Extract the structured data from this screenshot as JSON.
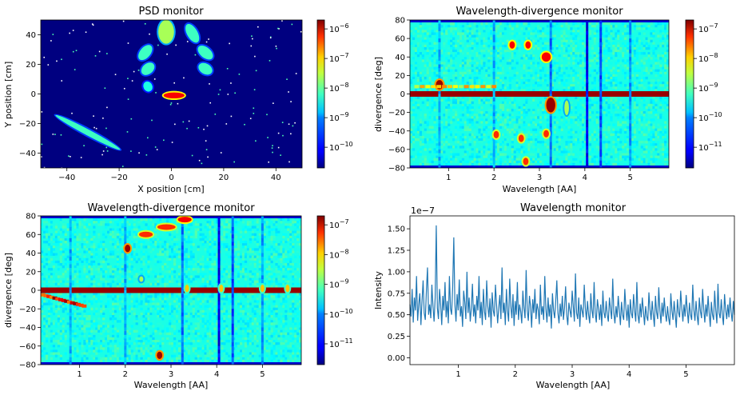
{
  "chart_data": [
    {
      "type": "heatmap",
      "title": "PSD monitor",
      "xlabel": "X position [cm]",
      "ylabel": "Y position [cm]",
      "xlim": [
        -50,
        50
      ],
      "ylim": [
        -50,
        50
      ],
      "xticks": [
        -40,
        -20,
        0,
        20,
        40
      ],
      "yticks": [
        -40,
        -20,
        0,
        20,
        40
      ],
      "colorbar": {
        "scale": "log",
        "range": [
          2e-11,
          2e-06
        ],
        "ticks": [
          "10^-10",
          "10^-9",
          "10^-8",
          "10^-7",
          "10^-6"
        ],
        "tick_values": [
          1e-10,
          1e-09,
          1e-08,
          1e-07,
          1e-06
        ]
      },
      "colormap": "jet",
      "background_level": 2e-11,
      "features": [
        {
          "kind": "blob",
          "x": -2,
          "y": 42,
          "w": 3,
          "h": 8,
          "angle": 0,
          "level": 1e-08
        },
        {
          "kind": "blob",
          "x": 8,
          "y": 41,
          "w": 2,
          "h": 7,
          "angle": 30,
          "level": 3e-09
        },
        {
          "kind": "blob",
          "x": -10,
          "y": 28,
          "w": 2,
          "h": 6,
          "angle": -40,
          "level": 3e-09
        },
        {
          "kind": "blob",
          "x": 13,
          "y": 28,
          "w": 2,
          "h": 6,
          "angle": 50,
          "level": 3e-09
        },
        {
          "kind": "blob",
          "x": -9,
          "y": 17,
          "w": 2,
          "h": 5,
          "angle": -50,
          "level": 3e-09
        },
        {
          "kind": "blob",
          "x": 13,
          "y": 17,
          "w": 2,
          "h": 5,
          "angle": 60,
          "level": 3e-09
        },
        {
          "kind": "blob",
          "x": -9,
          "y": 5,
          "w": 2,
          "h": 3,
          "angle": -60,
          "level": 2e-09
        },
        {
          "kind": "blob",
          "x": 1,
          "y": -1,
          "w": 4,
          "h": 2,
          "angle": 0,
          "level": 5e-07
        },
        {
          "kind": "blob",
          "x": -32,
          "y": -26,
          "w": 14,
          "h": 2,
          "angle": -28,
          "level": 3e-09
        }
      ]
    },
    {
      "type": "heatmap",
      "title": "Wavelength-divergence monitor",
      "xlabel": "Wavelength [AA]",
      "ylabel": "divergence [deg]",
      "xlim": [
        0.15,
        5.85
      ],
      "ylim": [
        -80,
        80
      ],
      "xticks": [
        1,
        2,
        3,
        4,
        5
      ],
      "yticks": [
        -80,
        -60,
        -40,
        -20,
        0,
        20,
        40,
        60,
        80
      ],
      "colorbar": {
        "scale": "log",
        "range": [
          2e-12,
          2e-07
        ],
        "ticks": [
          "10^-11",
          "10^-10",
          "10^-9",
          "10^-8",
          "10^-7"
        ],
        "tick_values": [
          1e-11,
          1e-10,
          1e-09,
          1e-08,
          1e-07
        ]
      },
      "colormap": "jet",
      "background_level": 2e-10,
      "features": [
        {
          "kind": "hband",
          "y": 0,
          "h": 3,
          "level": 1.5e-07
        },
        {
          "kind": "vline",
          "x": 0.8,
          "level": 6e-11
        },
        {
          "kind": "vline",
          "x": 2.0,
          "level": 6e-11
        },
        {
          "kind": "vline",
          "x": 3.25,
          "level": 3e-11
        },
        {
          "kind": "vline",
          "x": 4.05,
          "level": 8e-12
        },
        {
          "kind": "vline",
          "x": 4.35,
          "level": 2e-11
        },
        {
          "kind": "vline",
          "x": 5.0,
          "level": 5e-11
        },
        {
          "kind": "blob",
          "x": 2.4,
          "y": 53,
          "w": 0.06,
          "h": 4,
          "angle": 0,
          "level": 5e-08
        },
        {
          "kind": "blob",
          "x": 2.75,
          "y": 53,
          "w": 0.06,
          "h": 4,
          "angle": 0,
          "level": 5e-08
        },
        {
          "kind": "blob",
          "x": 3.15,
          "y": 40,
          "w": 0.1,
          "h": 5,
          "angle": 0,
          "level": 5e-08
        },
        {
          "kind": "blob",
          "x": 3.25,
          "y": -12,
          "w": 0.1,
          "h": 8,
          "angle": 0,
          "level": 1.5e-07
        },
        {
          "kind": "blob",
          "x": 2.05,
          "y": -44,
          "w": 0.06,
          "h": 4,
          "angle": 0,
          "level": 3e-08
        },
        {
          "kind": "blob",
          "x": 2.6,
          "y": -48,
          "w": 0.06,
          "h": 4,
          "angle": 0,
          "level": 3e-08
        },
        {
          "kind": "blob",
          "x": 3.15,
          "y": -43,
          "w": 0.06,
          "h": 4,
          "angle": 0,
          "level": 3e-08
        },
        {
          "kind": "blob",
          "x": 2.7,
          "y": -73,
          "w": 0.06,
          "h": 4,
          "angle": 0,
          "level": 3e-08
        },
        {
          "kind": "blob",
          "x": 0.8,
          "y": 10,
          "w": 0.08,
          "h": 5,
          "angle": 0,
          "level": 1.5e-07
        },
        {
          "kind": "streak",
          "x0": 0.3,
          "y0": 8,
          "x1": 2.0,
          "y1": 8,
          "level": 3e-09
        },
        {
          "kind": "blob",
          "x": 3.6,
          "y": -15,
          "w": 0.05,
          "h": 8,
          "angle": 0,
          "level": 1e-09
        }
      ]
    },
    {
      "type": "heatmap",
      "title": "Wavelength-divergence monitor",
      "xlabel": "Wavelength [AA]",
      "ylabel": "divergence [deg]",
      "xlim": [
        0.15,
        5.85
      ],
      "ylim": [
        -80,
        80
      ],
      "xticks": [
        1,
        2,
        3,
        4,
        5
      ],
      "yticks": [
        -80,
        -60,
        -40,
        -20,
        0,
        20,
        40,
        60,
        80
      ],
      "colorbar": {
        "scale": "log",
        "range": [
          2e-12,
          2e-07
        ],
        "ticks": [
          "10^-11",
          "10^-10",
          "10^-9",
          "10^-8",
          "10^-7"
        ],
        "tick_values": [
          1e-11,
          1e-10,
          1e-09,
          1e-08,
          1e-07
        ]
      },
      "colormap": "jet",
      "background_level": 2e-10,
      "features": [
        {
          "kind": "hband",
          "y": 0,
          "h": 3,
          "level": 1.5e-07
        },
        {
          "kind": "vline",
          "x": 0.8,
          "level": 6e-11
        },
        {
          "kind": "vline",
          "x": 2.0,
          "level": 6e-11
        },
        {
          "kind": "vline",
          "x": 3.25,
          "level": 3e-11
        },
        {
          "kind": "vline",
          "x": 4.05,
          "level": 8e-12
        },
        {
          "kind": "vline",
          "x": 4.35,
          "level": 2e-11
        },
        {
          "kind": "vline",
          "x": 5.0,
          "level": 5e-11
        },
        {
          "kind": "blob",
          "x": 2.05,
          "y": 45,
          "w": 0.06,
          "h": 4,
          "angle": 0,
          "level": 1.5e-07
        },
        {
          "kind": "blob",
          "x": 2.45,
          "y": 60,
          "w": 0.15,
          "h": 3,
          "angle": 0,
          "level": 3e-08
        },
        {
          "kind": "blob",
          "x": 2.9,
          "y": 68,
          "w": 0.2,
          "h": 3,
          "angle": 0,
          "level": 3e-08
        },
        {
          "kind": "blob",
          "x": 3.3,
          "y": 76,
          "w": 0.15,
          "h": 3,
          "angle": 0,
          "level": 5e-08
        },
        {
          "kind": "blob",
          "x": 2.75,
          "y": -70,
          "w": 0.06,
          "h": 4,
          "angle": 0,
          "level": 1.5e-07
        },
        {
          "kind": "streak",
          "x0": 0.2,
          "y0": -5,
          "x1": 1.1,
          "y1": -17,
          "level": 5e-08
        },
        {
          "kind": "blob",
          "x": 2.35,
          "y": 12,
          "w": 0.04,
          "h": 3,
          "angle": 0,
          "level": 1e-09
        },
        {
          "kind": "blob",
          "x": 3.35,
          "y": 2,
          "w": 0.04,
          "h": 4,
          "angle": 0,
          "level": 5e-09
        },
        {
          "kind": "blob",
          "x": 4.1,
          "y": 2,
          "w": 0.04,
          "h": 4,
          "angle": 0,
          "level": 5e-09
        },
        {
          "kind": "blob",
          "x": 5.0,
          "y": 2,
          "w": 0.04,
          "h": 4,
          "angle": 0,
          "level": 5e-09
        },
        {
          "kind": "blob",
          "x": 5.55,
          "y": 2,
          "w": 0.04,
          "h": 4,
          "angle": 0,
          "level": 5e-09
        }
      ]
    },
    {
      "type": "line",
      "title": "Wavelength monitor",
      "xlabel": "Wavelength [AA]",
      "ylabel": "Intensity",
      "offset_label": "1e−7",
      "xlim": [
        0.15,
        5.85
      ],
      "ylim": [
        -0.08,
        1.65
      ],
      "xticks": [
        1,
        2,
        3,
        4,
        5
      ],
      "yticks": [
        0.0,
        0.25,
        0.5,
        0.75,
        1.0,
        1.25,
        1.5
      ],
      "ytick_labels": [
        "0.00",
        "0.25",
        "0.50",
        "0.75",
        "1.00",
        "1.25",
        "1.50"
      ],
      "color": "#1f77b4",
      "series_x_start": 0.15,
      "series_x_end": 5.85,
      "values": [
        0.62,
        0.48,
        0.8,
        0.41,
        0.7,
        0.55,
        0.95,
        0.43,
        0.62,
        0.75,
        0.38,
        0.66,
        0.9,
        0.52,
        0.44,
        0.78,
        1.05,
        0.5,
        0.62,
        0.46,
        0.85,
        0.6,
        0.42,
        0.7,
        1.54,
        0.58,
        0.45,
        0.8,
        0.62,
        0.38,
        0.72,
        0.55,
        0.88,
        0.47,
        0.66,
        0.4,
        0.95,
        0.57,
        0.5,
        0.83,
        1.4,
        0.62,
        0.42,
        0.74,
        0.55,
        0.91,
        0.48,
        0.6,
        0.36,
        0.78,
        0.65,
        0.45,
        1.0,
        0.52,
        0.7,
        0.42,
        0.58,
        0.86,
        0.48,
        0.62,
        0.4,
        0.72,
        0.55,
        0.95,
        0.46,
        0.65,
        0.38,
        0.8,
        0.54,
        0.44,
        0.9,
        0.6,
        0.47,
        0.69,
        0.35,
        0.76,
        0.55,
        0.48,
        0.85,
        0.62,
        0.4,
        0.58,
        0.73,
        0.45,
        1.05,
        0.52,
        0.64,
        0.38,
        0.8,
        0.55,
        0.42,
        0.92,
        0.6,
        0.46,
        0.74,
        0.37,
        0.66,
        0.5,
        0.88,
        0.44,
        0.62,
        0.54,
        0.4,
        0.78,
        0.58,
        0.46,
        1.02,
        0.55,
        0.43,
        0.72,
        0.6,
        0.35,
        0.68,
        0.52,
        0.8,
        0.45,
        0.63,
        0.56,
        0.39,
        0.85,
        0.5,
        0.6,
        0.44,
        0.95,
        0.57,
        0.41,
        0.7,
        0.48,
        0.62,
        0.34,
        0.75,
        0.55,
        0.46,
        0.66,
        0.9,
        0.52,
        0.4,
        0.63,
        0.48,
        0.72,
        0.44,
        0.58,
        0.83,
        0.5,
        0.38,
        0.64,
        0.55,
        0.47,
        0.78,
        0.6,
        0.42,
        0.98,
        0.52,
        0.45,
        0.7,
        0.36,
        0.62,
        0.55,
        0.47,
        0.85,
        0.58,
        0.44,
        0.66,
        0.5,
        0.4,
        0.75,
        0.55,
        0.46,
        0.88,
        0.52,
        0.41,
        0.68,
        0.57,
        0.44,
        0.62,
        0.37,
        0.78,
        0.53,
        0.46,
        0.66,
        0.5,
        0.42,
        0.7,
        0.56,
        0.45,
        0.92,
        0.52,
        0.4,
        0.6,
        0.47,
        0.72,
        0.55,
        0.38,
        0.65,
        0.5,
        0.44,
        0.8,
        0.58,
        0.43,
        0.62,
        0.35,
        0.68,
        0.52,
        0.46,
        0.74,
        0.55,
        0.42,
        0.88,
        0.5,
        0.4,
        0.63,
        0.47,
        0.7,
        0.54,
        0.38,
        0.6,
        0.48,
        0.43,
        0.76,
        0.56,
        0.44,
        0.66,
        0.5,
        0.36,
        0.72,
        0.53,
        0.45,
        0.82,
        0.55,
        0.4,
        0.64,
        0.48,
        0.7,
        0.52,
        0.42,
        0.6,
        0.46,
        0.38,
        0.75,
        0.55,
        0.44,
        0.66,
        0.5,
        0.35,
        0.68,
        0.53,
        0.47,
        0.78,
        0.58,
        0.42,
        0.62,
        0.48,
        0.73,
        0.55,
        0.4,
        0.64,
        0.5,
        0.44,
        0.85,
        0.56,
        0.43,
        0.66,
        0.49,
        0.38,
        0.7,
        0.54,
        0.46,
        0.8,
        0.57,
        0.41,
        0.62,
        0.48,
        0.72,
        0.52,
        0.36,
        0.65,
        0.5,
        0.44,
        0.78,
        0.55,
        0.4,
        0.86,
        0.52,
        0.46,
        0.68,
        0.5,
        0.38,
        0.74,
        0.56,
        0.45,
        0.62,
        0.47,
        0.7,
        0.53,
        0.42,
        0.66,
        0.5
      ]
    }
  ]
}
